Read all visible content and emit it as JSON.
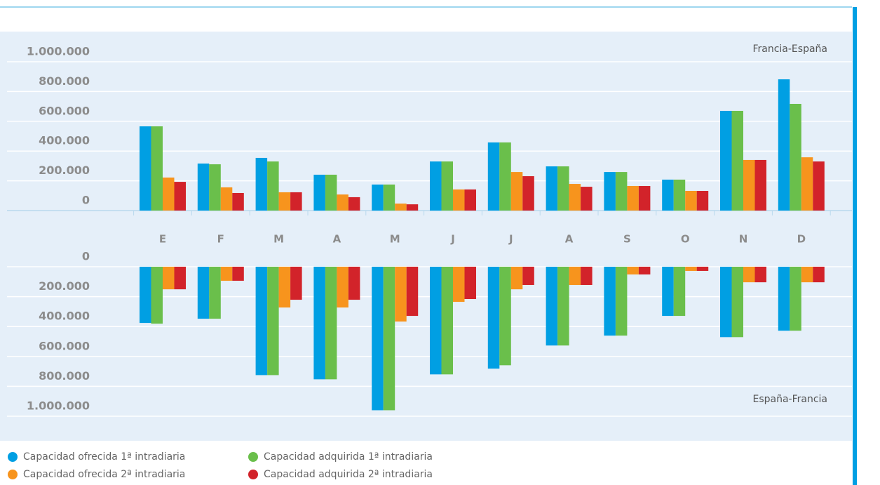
{
  "chart_data": [
    {
      "type": "bar",
      "annotation": "Francia-España",
      "categories": [
        "E",
        "F",
        "M",
        "A",
        "M",
        "J",
        "J",
        "A",
        "S",
        "O",
        "N",
        "D"
      ],
      "ylim": [
        0,
        1000000
      ],
      "yticks": [
        0,
        {
          "value": 200000,
          "label": "200.000"
        },
        {
          "value": 400000,
          "label": "400.000"
        },
        {
          "value": 600000,
          "label": "600.000"
        },
        {
          "value": 800000,
          "label": "800.000"
        },
        {
          "value": 1000000,
          "label": "1.000.000"
        }
      ],
      "grid": true,
      "series": [
        {
          "name": "Capacidad ofrecida 1ª intradiaria",
          "color": "#009fe3",
          "values": [
            566000,
            316000,
            354000,
            241000,
            175000,
            330000,
            458000,
            297000,
            259000,
            208000,
            670000,
            882000
          ]
        },
        {
          "name": "Capacidad adquirida 1ª intradiaria",
          "color": "#6abf4b",
          "values": [
            566000,
            311000,
            330000,
            241000,
            175000,
            330000,
            458000,
            297000,
            259000,
            208000,
            670000,
            717000
          ]
        },
        {
          "name": "Capacidad ofrecida 2ª intradiaria",
          "color": "#f7941d",
          "values": [
            222000,
            156000,
            123000,
            108000,
            47000,
            142000,
            259000,
            179000,
            165000,
            132000,
            340000,
            358000
          ]
        },
        {
          "name": "Capacidad adquirida 2ª intradiaria",
          "color": "#d2232a",
          "values": [
            193000,
            118000,
            123000,
            90000,
            42000,
            142000,
            231000,
            160000,
            165000,
            132000,
            340000,
            330000
          ]
        }
      ]
    },
    {
      "type": "bar",
      "annotation": "España-Francia",
      "y_inverted": true,
      "ylim": [
        0,
        1000000
      ],
      "yticks": [
        0,
        {
          "value": 200000,
          "label": "200.000"
        },
        {
          "value": 400000,
          "label": "400.000"
        },
        {
          "value": 600000,
          "label": "600.000"
        },
        {
          "value": 800000,
          "label": "800.000"
        },
        {
          "value": 1000000,
          "label": "1.000.000"
        }
      ],
      "grid": true,
      "series": [
        {
          "color": "#009fe3",
          "values": [
            376000,
            348000,
            725000,
            753000,
            960000,
            720000,
            682000,
            527000,
            461000,
            329000,
            471000,
            428000
          ]
        },
        {
          "color": "#6abf4b",
          "values": [
            381000,
            348000,
            725000,
            753000,
            960000,
            720000,
            659000,
            527000,
            461000,
            329000,
            471000,
            428000
          ]
        },
        {
          "color": "#f7941d",
          "values": [
            151000,
            94000,
            273000,
            273000,
            367000,
            235000,
            151000,
            122000,
            52000,
            28000,
            104000,
            104000
          ]
        },
        {
          "color": "#d2232a",
          "values": [
            151000,
            94000,
            221000,
            221000,
            329000,
            216000,
            122000,
            122000,
            52000,
            28000,
            104000,
            104000
          ]
        }
      ]
    }
  ]
}
